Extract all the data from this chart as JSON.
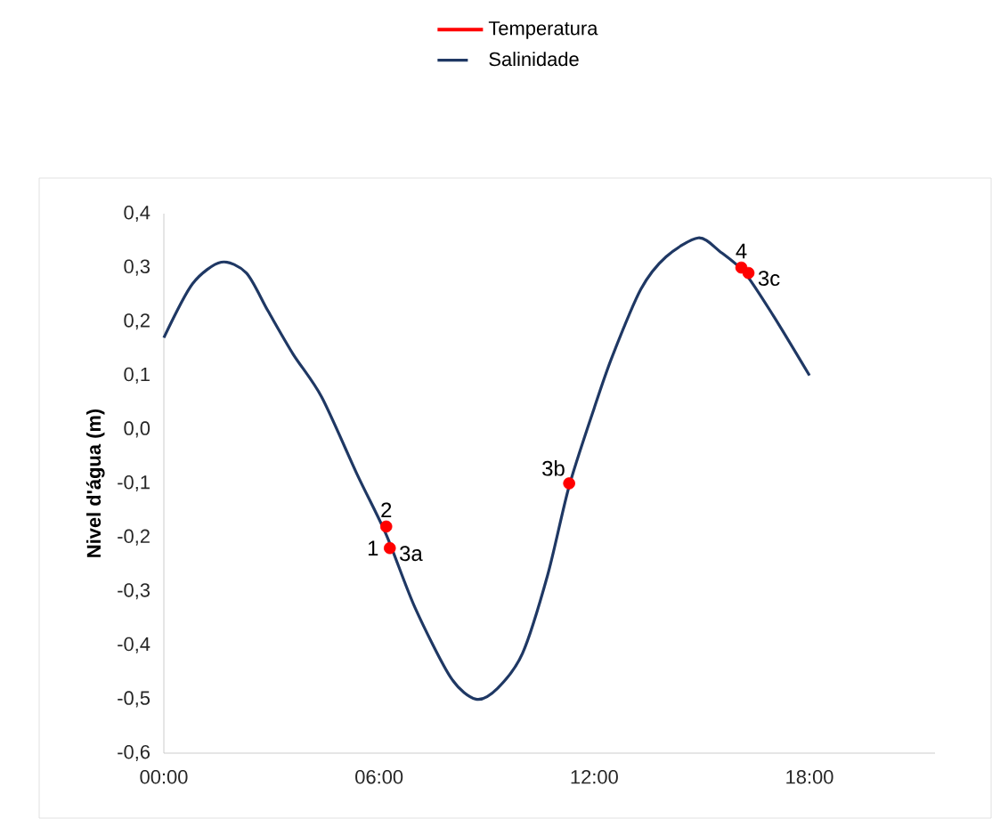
{
  "chart_data": {
    "type": "line",
    "ylabel": "Nivel d'água (m)",
    "series": [
      {
        "name": "Temperatura",
        "type": "scatter",
        "marker": "circle",
        "color": "#ff0000",
        "x": [
          6.2,
          6.3,
          11.3,
          16.1,
          16.3
        ],
        "values": [
          -0.18,
          -0.22,
          -0.1,
          0.3,
          0.29
        ]
      },
      {
        "name": "Salinidade",
        "marker": "none",
        "color": "#1f3864",
        "x": [
          0,
          0.8,
          1.6,
          2.3,
          2.9,
          3.6,
          4.4,
          5.4,
          6.2,
          7.0,
          8.0,
          8.7,
          9.3,
          10.0,
          10.7,
          11.3,
          12.0,
          12.5,
          13.3,
          14.0,
          14.9,
          15.5,
          16.2,
          17.0,
          18.0
        ],
        "values": [
          0.17,
          0.27,
          0.31,
          0.29,
          0.22,
          0.14,
          0.06,
          -0.085,
          -0.195,
          -0.33,
          -0.46,
          -0.5,
          -0.48,
          -0.415,
          -0.27,
          -0.105,
          0.04,
          0.135,
          0.26,
          0.32,
          0.355,
          0.33,
          0.29,
          0.21,
          0.1
        ]
      }
    ],
    "xlim": [
      0,
      21.5
    ],
    "xticks": [
      {
        "value": 0,
        "label": "00:00"
      },
      {
        "value": 6,
        "label": "06:00"
      },
      {
        "value": 12,
        "label": "12:00"
      },
      {
        "value": 18,
        "label": "18:00"
      }
    ],
    "ylim": [
      -0.6,
      0.4
    ],
    "yticks": [
      {
        "value": -0.6,
        "label": "-0,6"
      },
      {
        "value": -0.5,
        "label": "-0,5"
      },
      {
        "value": -0.4,
        "label": "-0,4"
      },
      {
        "value": -0.3,
        "label": "-0,3"
      },
      {
        "value": -0.2,
        "label": "-0,2"
      },
      {
        "value": -0.1,
        "label": "-0,1"
      },
      {
        "value": 0.0,
        "label": "0,0"
      },
      {
        "value": 0.1,
        "label": "0,1"
      },
      {
        "value": 0.2,
        "label": "0,2"
      },
      {
        "value": 0.3,
        "label": "0,3"
      },
      {
        "value": 0.4,
        "label": "0,4"
      }
    ],
    "grid": false,
    "legend": "top",
    "annotations": [
      {
        "text": "2",
        "x": 6.2,
        "y": -0.18
      },
      {
        "text": "1",
        "x": 6.3,
        "y": -0.22
      },
      {
        "text": "3a",
        "x": 6.3,
        "y": -0.22
      },
      {
        "text": "3b",
        "x": 11.3,
        "y": -0.1
      },
      {
        "text": "4",
        "x": 16.1,
        "y": 0.3
      },
      {
        "text": "3c",
        "x": 16.3,
        "y": 0.29
      }
    ]
  }
}
